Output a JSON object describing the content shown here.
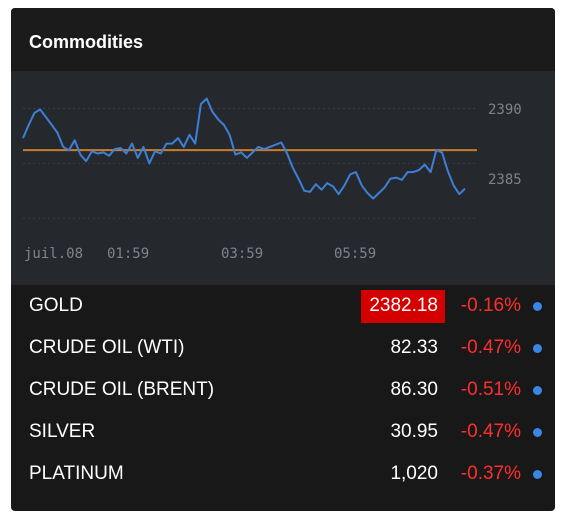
{
  "widget": {
    "title": "Commodities"
  },
  "chart_data": {
    "type": "line",
    "xlabels": [
      "juil.08",
      "01:59",
      "03:59",
      "05:59"
    ],
    "ylabels": [
      "2390",
      "2385"
    ],
    "reference_level": 2386.2,
    "ylim": [
      2377.2,
      2392.5
    ],
    "series": [
      {
        "values": [
          2387.3,
          2388.5,
          2389.6,
          2389.9,
          2389.2,
          2388.5,
          2387.8,
          2386.5,
          2386.2,
          2387.1,
          2385.8,
          2385.2,
          2386.1,
          2385.9,
          2386.0,
          2385.7,
          2386.3,
          2386.4,
          2385.9,
          2386.8,
          2385.5,
          2386.5,
          2385.0,
          2386.1,
          2385.9,
          2386.8,
          2386.8,
          2387.3,
          2386.5,
          2387.6,
          2386.8,
          2390.4,
          2390.9,
          2389.7,
          2389.0,
          2388.5,
          2387.6,
          2385.8,
          2386.0,
          2385.5,
          2386.0,
          2386.5,
          2386.3,
          2386.5,
          2386.7,
          2386.9,
          2385.9,
          2384.6,
          2383.6,
          2382.5,
          2382.4,
          2383.1,
          2382.6,
          2383.2,
          2382.9,
          2382.2,
          2383.0,
          2384.0,
          2384.2,
          2383.0,
          2382.3,
          2381.8,
          2382.3,
          2382.8,
          2383.6,
          2383.7,
          2383.5,
          2384.2,
          2384.2,
          2384.4,
          2384.9,
          2384.2,
          2386.2,
          2386.0,
          2384.3,
          2383.0,
          2382.2,
          2382.7
        ]
      }
    ]
  },
  "commodities": [
    {
      "name": "GOLD",
      "price": "2382.18",
      "change": "-0.16%"
    },
    {
      "name": "CRUDE OIL (WTI)",
      "price": "82.33",
      "change": "-0.47%"
    },
    {
      "name": "CRUDE OIL (BRENT)",
      "price": "86.30",
      "change": "-0.51%"
    },
    {
      "name": "SILVER",
      "price": "30.95",
      "change": "-0.47%"
    },
    {
      "name": "PLATINUM",
      "price": "1,020",
      "change": "-0.37%"
    }
  ],
  "colors": {
    "line": "#3d7fd6",
    "reference": "#c87d2c",
    "negative": "#ff2e2e",
    "flash": "#d40000",
    "dot": "#3a86e8"
  }
}
